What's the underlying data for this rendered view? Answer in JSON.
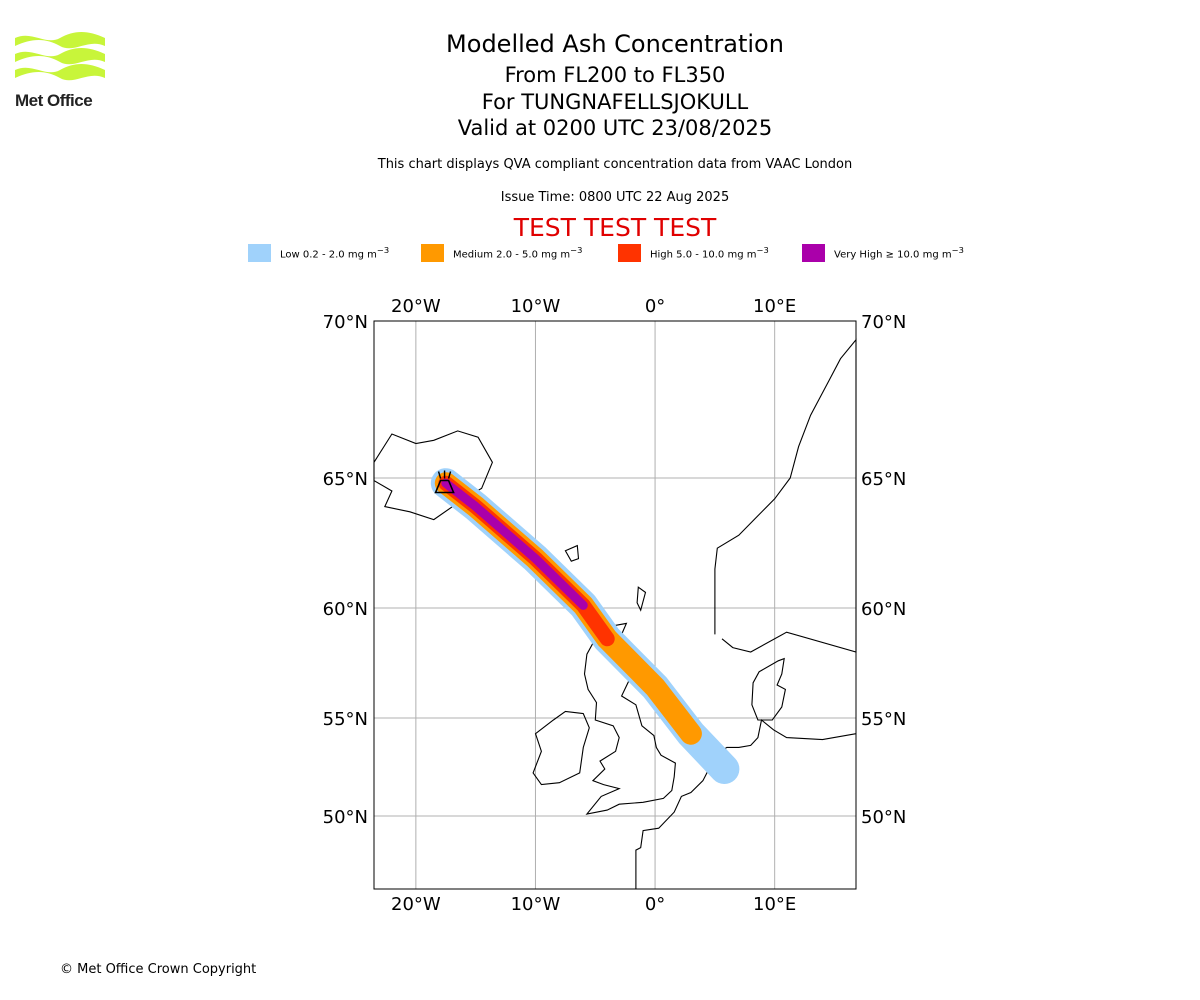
{
  "logo": {
    "text": "Met Office",
    "color": "#c8f53a"
  },
  "title": {
    "main": "Modelled Ash Concentration",
    "levels": "From FL200 to FL350",
    "volcano": "For TUNGNAFELLSJOKULL",
    "valid": "Valid at 0200 UTC 23/08/2025",
    "description": "This chart displays QVA compliant concentration data from VAAC London",
    "issue": "Issue Time: 0800 UTC 22 Aug 2025",
    "test_banner": "TEST TEST TEST"
  },
  "legend": [
    {
      "label": "Low 0.2 - 2.0 mg m",
      "sup": "−3",
      "color": "#a0d2fb"
    },
    {
      "label": "Medium 2.0 - 5.0 mg m",
      "sup": "−3",
      "color": "#ff9900"
    },
    {
      "label": "High 5.0 - 10.0 mg m",
      "sup": "−3",
      "color": "#ff3300"
    },
    {
      "label": "Very High  ≥  10.0 mg m",
      "sup": "−3",
      "color": "#aa00aa"
    }
  ],
  "map": {
    "lon_range": [
      -23.5,
      16.8
    ],
    "lat_range": [
      47,
      70
    ],
    "lon_ticks": [
      -20,
      -10,
      0,
      10
    ],
    "lon_tick_labels": [
      "20°W",
      "10°W",
      "0°",
      "10°E"
    ],
    "lat_ticks": [
      70,
      65,
      60,
      55,
      50
    ],
    "lat_tick_labels": [
      "70°N",
      "65°N",
      "60°N",
      "55°N",
      "50°N"
    ],
    "grid": true,
    "volcano_icon": "volcano-icon",
    "plume_path": [
      [
        -17.5,
        64.8
      ],
      [
        -15,
        63.9
      ],
      [
        -10,
        61.9
      ],
      [
        -6,
        60.1
      ],
      [
        -4,
        58.6
      ],
      [
        0,
        56.4
      ],
      [
        3,
        54.2
      ],
      [
        5.8,
        52.4
      ]
    ]
  },
  "copyright": "© Met Office Crown Copyright"
}
